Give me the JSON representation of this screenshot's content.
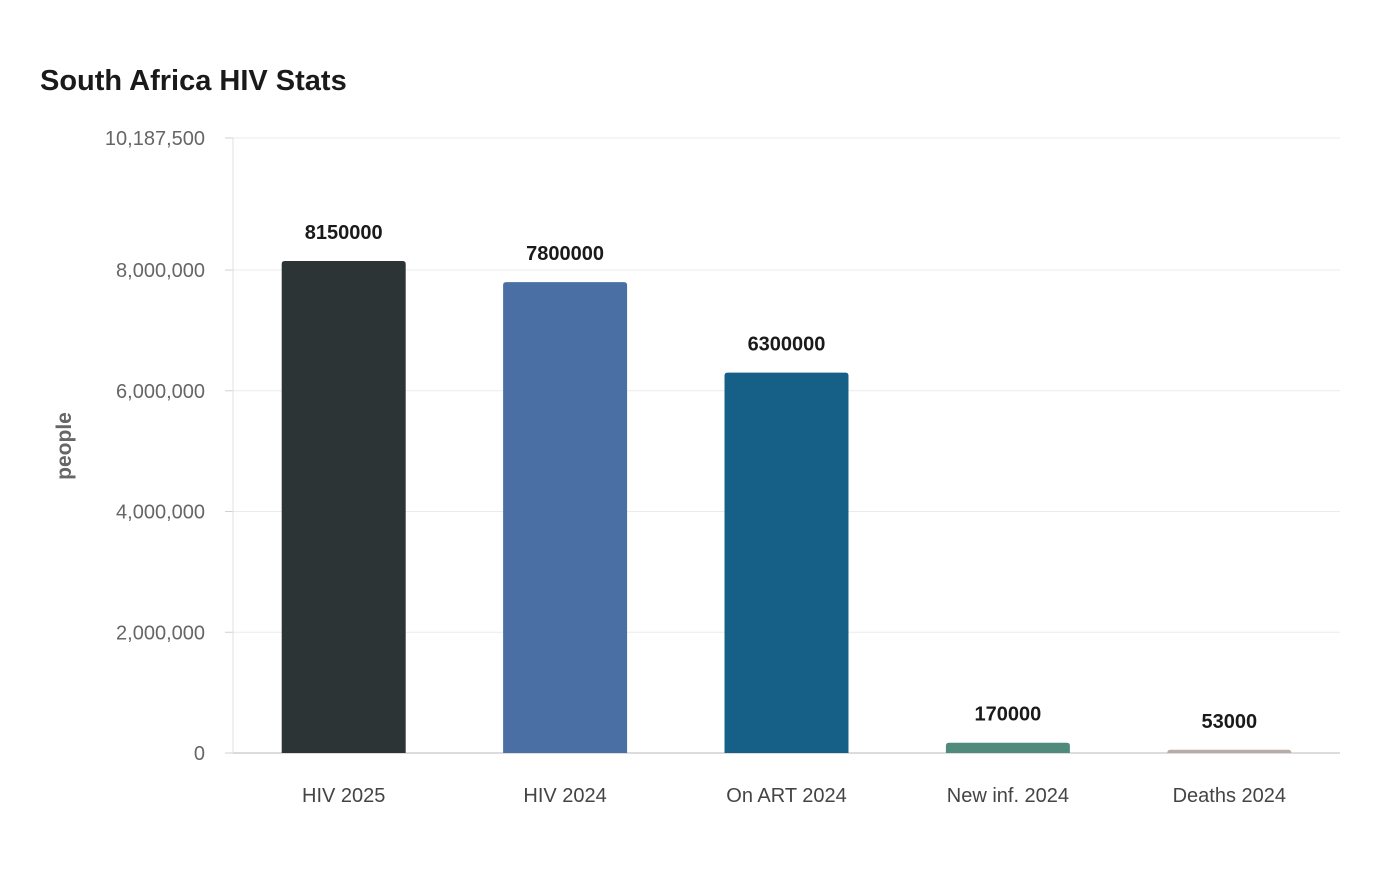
{
  "chart_data": {
    "type": "bar",
    "title": "South Africa HIV Stats",
    "xlabel": "",
    "ylabel": "people",
    "categories": [
      "HIV 2025",
      "HIV 2024",
      "On ART 2024",
      "New inf. 2024",
      "Deaths 2024"
    ],
    "values": [
      8150000,
      7800000,
      6300000,
      170000,
      53000
    ],
    "data_labels": [
      "8150000",
      "7800000",
      "6300000",
      "170000",
      "53000"
    ],
    "colors": [
      "#2d3436",
      "#4a6fa5",
      "#166088",
      "#4f8a7b",
      "#b8ada6"
    ],
    "ylim": [
      0,
      10187500
    ],
    "yticks": [
      0,
      2000000,
      4000000,
      6000000,
      8000000,
      10187500
    ],
    "ytick_labels": [
      "0",
      "2,000,000",
      "4,000,000",
      "6,000,000",
      "8,000,000",
      "10,187,500"
    ],
    "grid": "horizontal",
    "legend": "none"
  }
}
